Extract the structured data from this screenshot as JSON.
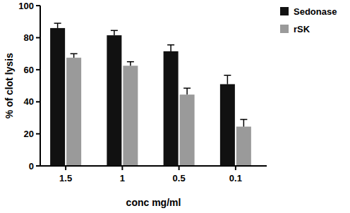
{
  "chart_data": {
    "type": "bar",
    "x_label": "conc mg/ml",
    "y_label": "% of clot lysis",
    "categories": [
      "1.5",
      "1",
      "0.5",
      "0.1"
    ],
    "series": [
      {
        "name": "Sedonase",
        "color": "#111111",
        "values": [
          86,
          81.5,
          71.5,
          51
        ],
        "errors": [
          3,
          3,
          4,
          5.5
        ]
      },
      {
        "name": "rSK",
        "color": "#9a9a9a",
        "values": [
          67.5,
          62.5,
          44.5,
          24.5
        ],
        "errors": [
          2.5,
          2.5,
          4,
          4.5
        ]
      }
    ],
    "ylim": [
      0,
      100
    ],
    "yticks": [
      0,
      20,
      40,
      60,
      80,
      100
    ],
    "grid": false,
    "legend": "right"
  }
}
